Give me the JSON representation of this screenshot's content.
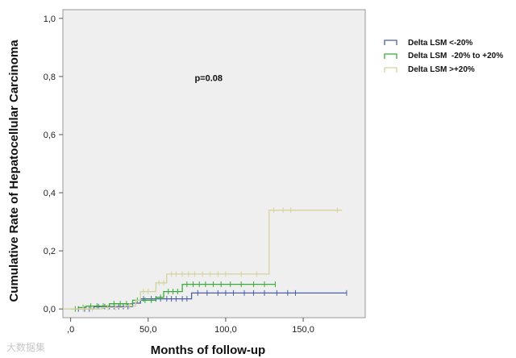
{
  "chart_data": {
    "type": "line",
    "subtype": "kaplan-meier-cumulative-incidence",
    "title": "",
    "xlabel": "Months of follow-up",
    "ylabel": "Cumulative Rate of Hepatocellular Carcinoma",
    "xlim": [
      -5,
      190
    ],
    "ylim": [
      -0.03,
      1.03
    ],
    "x_ticks": [
      0,
      50,
      100,
      150
    ],
    "x_tick_labels": [
      ",0",
      "50,0",
      "100,0",
      "150,0"
    ],
    "y_ticks": [
      0,
      0.2,
      0.4,
      0.6,
      0.8,
      1.0
    ],
    "y_tick_labels": [
      "0,0",
      "0,2",
      "0,4",
      "0,6",
      "0,8",
      "1,0"
    ],
    "grid": false,
    "legend_position": "top-right",
    "annotations": [
      {
        "text": "p=0.08",
        "x": 80,
        "y": 0.785
      }
    ],
    "series": [
      {
        "name": "Delta LSM <-20%",
        "color": "#4a5fa8",
        "steps": [
          [
            0,
            0.0
          ],
          [
            15,
            0.008
          ],
          [
            40,
            0.02
          ],
          [
            45,
            0.035
          ],
          [
            78,
            0.055
          ],
          [
            178,
            0.055
          ]
        ],
        "censored": [
          [
            5,
            0.0
          ],
          [
            9,
            0.0
          ],
          [
            12,
            0.0
          ],
          [
            18,
            0.008
          ],
          [
            22,
            0.008
          ],
          [
            25,
            0.008
          ],
          [
            28,
            0.008
          ],
          [
            31,
            0.008
          ],
          [
            34,
            0.008
          ],
          [
            37,
            0.008
          ],
          [
            47,
            0.035
          ],
          [
            52,
            0.035
          ],
          [
            55,
            0.035
          ],
          [
            58,
            0.035
          ],
          [
            62,
            0.035
          ],
          [
            65,
            0.035
          ],
          [
            68,
            0.035
          ],
          [
            72,
            0.035
          ],
          [
            75,
            0.035
          ],
          [
            82,
            0.055
          ],
          [
            88,
            0.055
          ],
          [
            95,
            0.055
          ],
          [
            100,
            0.055
          ],
          [
            105,
            0.055
          ],
          [
            112,
            0.055
          ],
          [
            118,
            0.055
          ],
          [
            125,
            0.055
          ],
          [
            133,
            0.055
          ],
          [
            140,
            0.055
          ],
          [
            145,
            0.055
          ],
          [
            178,
            0.055
          ]
        ]
      },
      {
        "name": "Delta LSM  -20% to +20%",
        "color": "#3aaa3a",
        "steps": [
          [
            0,
            0.0
          ],
          [
            5,
            0.005
          ],
          [
            10,
            0.01
          ],
          [
            25,
            0.018
          ],
          [
            40,
            0.03
          ],
          [
            55,
            0.04
          ],
          [
            60,
            0.06
          ],
          [
            72,
            0.085
          ],
          [
            132,
            0.085
          ]
        ],
        "censored": [
          [
            3,
            0.0
          ],
          [
            8,
            0.005
          ],
          [
            13,
            0.01
          ],
          [
            17,
            0.01
          ],
          [
            21,
            0.01
          ],
          [
            28,
            0.018
          ],
          [
            32,
            0.018
          ],
          [
            36,
            0.018
          ],
          [
            43,
            0.03
          ],
          [
            48,
            0.03
          ],
          [
            52,
            0.03
          ],
          [
            58,
            0.04
          ],
          [
            63,
            0.06
          ],
          [
            66,
            0.06
          ],
          [
            69,
            0.06
          ],
          [
            75,
            0.085
          ],
          [
            79,
            0.085
          ],
          [
            83,
            0.085
          ],
          [
            87,
            0.085
          ],
          [
            92,
            0.085
          ],
          [
            97,
            0.085
          ],
          [
            103,
            0.085
          ],
          [
            110,
            0.085
          ],
          [
            118,
            0.085
          ],
          [
            125,
            0.085
          ],
          [
            132,
            0.085
          ]
        ]
      },
      {
        "name": "Delta LSM >+20%",
        "color": "#d6d29e",
        "steps": [
          [
            -5,
            0.0
          ],
          [
            20,
            0.005
          ],
          [
            35,
            0.01
          ],
          [
            42,
            0.03
          ],
          [
            45,
            0.06
          ],
          [
            55,
            0.09
          ],
          [
            62,
            0.12
          ],
          [
            128,
            0.12
          ],
          [
            128,
            0.34
          ],
          [
            175,
            0.34
          ]
        ],
        "censored": [
          [
            8,
            0.0
          ],
          [
            14,
            0.0
          ],
          [
            24,
            0.005
          ],
          [
            29,
            0.005
          ],
          [
            38,
            0.01
          ],
          [
            47,
            0.06
          ],
          [
            50,
            0.06
          ],
          [
            57,
            0.09
          ],
          [
            60,
            0.09
          ],
          [
            65,
            0.12
          ],
          [
            68,
            0.12
          ],
          [
            72,
            0.12
          ],
          [
            76,
            0.12
          ],
          [
            80,
            0.12
          ],
          [
            85,
            0.12
          ],
          [
            90,
            0.12
          ],
          [
            95,
            0.12
          ],
          [
            100,
            0.12
          ],
          [
            110,
            0.12
          ],
          [
            120,
            0.12
          ],
          [
            131,
            0.34
          ],
          [
            137,
            0.34
          ],
          [
            142,
            0.34
          ],
          [
            172,
            0.34
          ]
        ]
      }
    ]
  },
  "watermark_text": "大数据集"
}
